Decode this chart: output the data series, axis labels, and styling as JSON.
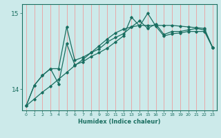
{
  "xlabel": "Humidex (Indice chaleur)",
  "ylabel": "",
  "background_color": "#cceaea",
  "line_color": "#1a6e60",
  "grid_color": "#e8a8a8",
  "x_values": [
    0,
    1,
    2,
    3,
    4,
    5,
    6,
    7,
    8,
    9,
    10,
    11,
    12,
    13,
    14,
    15,
    16,
    17,
    18,
    19,
    20,
    21,
    22,
    23
  ],
  "line1": [
    13.78,
    14.05,
    14.18,
    14.27,
    14.27,
    14.82,
    14.38,
    14.42,
    14.48,
    14.53,
    14.62,
    14.68,
    14.73,
    14.82,
    14.9,
    14.8,
    14.86,
    14.72,
    14.76,
    14.76,
    14.78,
    14.8,
    14.78,
    14.55
  ],
  "line2": [
    13.78,
    14.05,
    14.18,
    14.27,
    14.07,
    14.6,
    14.32,
    14.36,
    14.43,
    14.48,
    14.54,
    14.62,
    14.7,
    14.95,
    14.83,
    15.0,
    14.83,
    14.7,
    14.73,
    14.74,
    14.76,
    14.76,
    14.76,
    14.55
  ],
  "line3_straight": [
    13.78,
    13.87,
    13.96,
    14.04,
    14.13,
    14.22,
    14.31,
    14.39,
    14.48,
    14.57,
    14.66,
    14.74,
    14.79,
    14.82,
    14.84,
    14.84,
    14.84,
    14.84,
    14.84,
    14.83,
    14.82,
    14.81,
    14.8,
    14.55
  ],
  "ylim": [
    13.72,
    15.12
  ],
  "yticks": [
    14,
    15
  ],
  "xlim": [
    -0.5,
    23.5
  ],
  "figsize": [
    3.2,
    2.0
  ],
  "dpi": 100
}
